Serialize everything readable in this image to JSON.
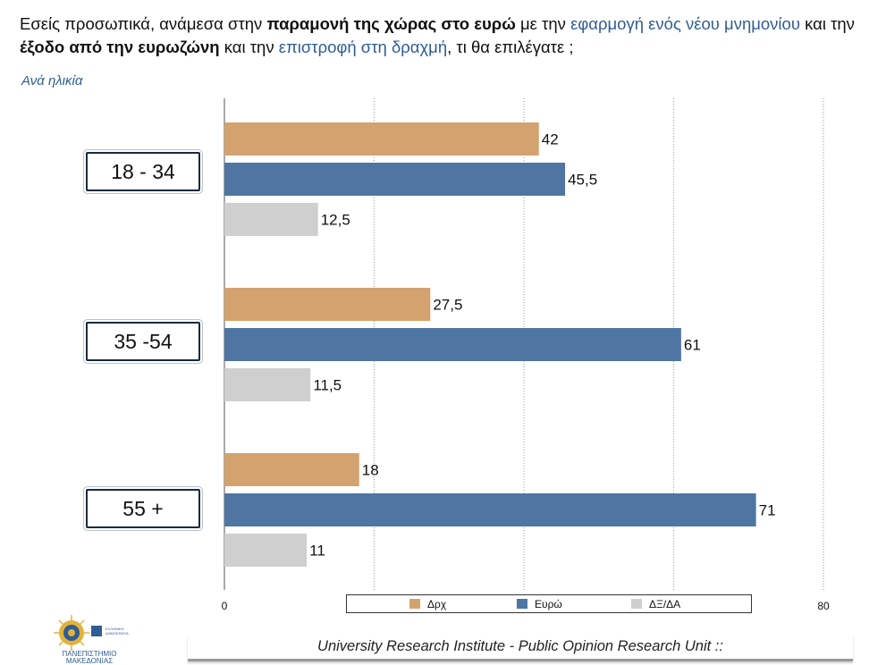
{
  "question": {
    "p1": "Εσείς προσωπικά, ανάμεσα στην ",
    "p2": "παραμονή της χώρας στο ευρώ",
    "p3": " με την ",
    "p4": "εφαρμογή ενός νέου μνημονίου",
    "p5": " και την ",
    "p6": "έξοδο από την ευρωζώνη",
    "p7": " και την ",
    "p8": "επιστροφή στη δραχμή",
    "p9": ", τι θα επιλέγατε ;"
  },
  "subtitle": "Ανά ηλικία",
  "footer": "University Research Institute - Public Opinion Research Unit ::",
  "logo": {
    "name": "university-of-macedonia-logo",
    "text_line1": "ΠΑΝΕΠΙΣΤΗΜΙΟ",
    "text_line2": "ΜΑΚΕΔΟΝΙΑΣ",
    "seal_text": "ΕΛΛΗΝΙΚΗ ΔΗΜΟΚΡΑΤΙΑ"
  },
  "chart_data": {
    "type": "bar",
    "orientation": "horizontal",
    "categories": [
      "18 - 34",
      "35 -54",
      "55 +"
    ],
    "series": [
      {
        "name": "Δρχ",
        "color": "#d4a26f",
        "values": [
          42,
          27.5,
          18
        ],
        "labels": [
          "42",
          "27,5",
          "18"
        ]
      },
      {
        "name": "Ευρώ",
        "color": "#4f76a3",
        "values": [
          45.5,
          61,
          71
        ],
        "labels": [
          "45,5",
          "61",
          "71"
        ]
      },
      {
        "name": "ΔΞ/ΔΑ",
        "color": "#cfcfcf",
        "values": [
          12.5,
          11.5,
          11
        ],
        "labels": [
          "12,5",
          "11,5",
          "11"
        ]
      }
    ],
    "xlim": [
      0,
      80
    ],
    "x_tick_labels": [
      "0",
      "80"
    ],
    "grid": "vertical dotted",
    "legend_position": "bottom"
  }
}
